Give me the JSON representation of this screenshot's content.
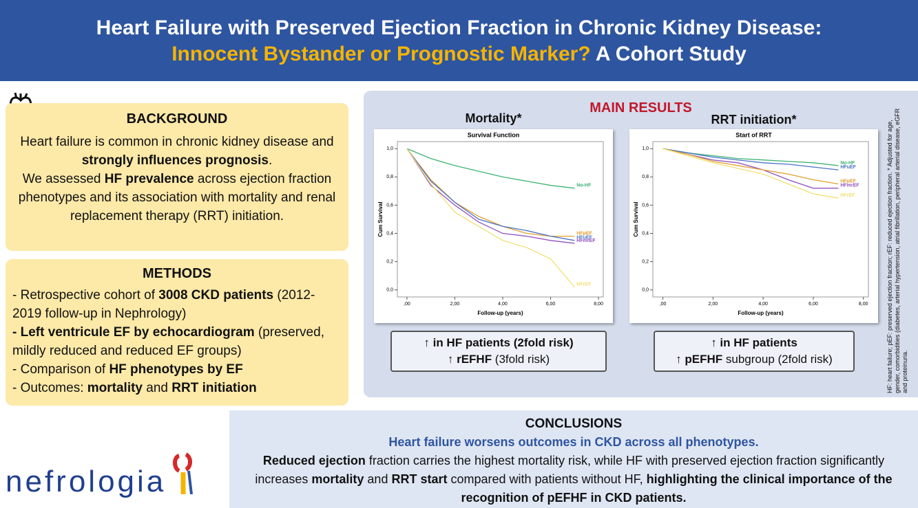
{
  "header": {
    "title_line1": "Heart Failure with Preserved Ejection Fraction in Chronic Kidney Disease:",
    "title_line2_highlight": "Innocent Bystander or Prognostic Marker?",
    "title_line2_rest": "A Cohort Study"
  },
  "background": {
    "title": "BACKGROUND",
    "text": [
      "Heart failure is common in chronic kidney disease and ",
      "strongly influences prognosis",
      ".",
      "We assessed ",
      "HF prevalence",
      " across ejection fraction phenotypes and its association with mortality and renal replacement therapy (RRT) initiation."
    ]
  },
  "methods": {
    "title": "METHODS",
    "items": [
      [
        "- Retrospective cohort of ",
        "3008 CKD patients",
        " (2012-2019 follow-up in Nephrology)"
      ],
      [
        "- Left ventricule EF by echocardiogram",
        " (preserved, mildly reduced and reduced EF groups)"
      ],
      [
        "- Comparison of ",
        "HF phenotypes by EF"
      ],
      [
        "- Outcomes: ",
        "mortality",
        " and ",
        "RRT initiation"
      ]
    ]
  },
  "results": {
    "title": "MAIN RESULTS",
    "headings": [
      "Mortality*",
      "RRT initiation*"
    ],
    "findings": [
      [
        [
          "↑ in HF patients (2fold risk)"
        ],
        [
          "↑ ",
          "rEFHF",
          " (3fold risk)"
        ]
      ],
      [
        [
          "↑ in HF patients"
        ],
        [
          "↑ ",
          "pEFHF",
          " subgroup (2fold risk)"
        ]
      ]
    ]
  },
  "footnote": "HF: heart failure; pEF: preserved ejection fraction; rEF: reduced ejection fraction. * Adjusted for age, gender, comorbidities (diabetes, arterial hypertension, atrial fibrillation, peripheral arterial disease, eGFR and proteinuria.",
  "conclusions": {
    "title": "CONCLUSIONS",
    "subtitle": "Heart failure worsens outcomes in CKD across all phenotypes.",
    "text": [
      "Reduced ejection",
      " fraction carries the highest mortality risk, while HF with preserved ejection fraction significantly increases ",
      "mortality",
      " and ",
      "RRT start",
      " compared with patients without HF, ",
      "highlighting the clinical importance of the recognition of pEFHF in CKD patients."
    ]
  },
  "logo": "nefrologia",
  "chart_data": [
    {
      "type": "line",
      "title": "Survival Function",
      "x_label": "Follow-up (years)",
      "y_label": "Cum Survival",
      "x": [
        0,
        1,
        2,
        3,
        4,
        5,
        6,
        7
      ],
      "series": [
        {
          "name": "No-HF",
          "color": "#3cb371",
          "values": [
            1.0,
            0.93,
            0.88,
            0.84,
            0.8,
            0.77,
            0.74,
            0.72
          ]
        },
        {
          "name": "HFpEF",
          "color": "#e0a030",
          "values": [
            1.0,
            0.78,
            0.62,
            0.52,
            0.45,
            0.4,
            0.38,
            0.38
          ]
        },
        {
          "name": "HFuEF",
          "color": "#4a72c8",
          "values": [
            1.0,
            0.77,
            0.62,
            0.5,
            0.45,
            0.42,
            0.38,
            0.35
          ]
        },
        {
          "name": "HFmrEF",
          "color": "#9050c0",
          "values": [
            1.0,
            0.74,
            0.6,
            0.48,
            0.4,
            0.38,
            0.35,
            0.33
          ]
        },
        {
          "name": "HFrEF",
          "color": "#f0e070",
          "values": [
            1.0,
            0.75,
            0.55,
            0.45,
            0.35,
            0.3,
            0.22,
            0.02
          ]
        }
      ],
      "xlim": [
        -0.4,
        8.2
      ],
      "ylim": [
        -0.05,
        1.05
      ],
      "xticks": [
        {
          "value": 0,
          "label": ",00"
        },
        {
          "value": 2,
          "label": "2,00"
        },
        {
          "value": 4,
          "label": "4,00"
        },
        {
          "value": 6,
          "label": "6,00"
        },
        {
          "value": 8,
          "label": "8,00"
        }
      ],
      "yticks": [
        {
          "value": 0,
          "label": "0,0"
        },
        {
          "value": 0.2,
          "label": "0,2"
        },
        {
          "value": 0.4,
          "label": "0,4"
        },
        {
          "value": 0.6,
          "label": "0,6"
        },
        {
          "value": 0.8,
          "label": "0,8"
        },
        {
          "value": 1,
          "label": "1,0"
        }
      ]
    },
    {
      "type": "line",
      "title": "Start of RRT",
      "x_label": "Follow-up (years)",
      "y_label": "Cum Survival",
      "x": [
        0,
        1,
        2,
        3,
        4,
        5,
        6,
        7
      ],
      "series": [
        {
          "name": "No-HF",
          "color": "#3cb371",
          "values": [
            1.0,
            0.97,
            0.95,
            0.93,
            0.92,
            0.91,
            0.9,
            0.88
          ]
        },
        {
          "name": "HFuEF",
          "color": "#4a72c8",
          "values": [
            1.0,
            0.97,
            0.94,
            0.92,
            0.9,
            0.89,
            0.87,
            0.85
          ]
        },
        {
          "name": "HFmrEF",
          "color": "#9050c0",
          "values": [
            1.0,
            0.96,
            0.92,
            0.9,
            0.85,
            0.78,
            0.72,
            0.72
          ]
        },
        {
          "name": "HFpEF",
          "color": "#e0a030",
          "values": [
            1.0,
            0.96,
            0.91,
            0.88,
            0.85,
            0.82,
            0.78,
            0.75
          ]
        },
        {
          "name": "HFrEF",
          "color": "#f0e070",
          "values": [
            1.0,
            0.95,
            0.9,
            0.86,
            0.82,
            0.75,
            0.68,
            0.65
          ]
        }
      ],
      "xlim": [
        -0.4,
        8.2
      ],
      "ylim": [
        -0.05,
        1.05
      ],
      "xticks": [
        {
          "value": 0,
          "label": ",00"
        },
        {
          "value": 2,
          "label": "2,00"
        },
        {
          "value": 4,
          "label": "4,00"
        },
        {
          "value": 6,
          "label": "6,00"
        },
        {
          "value": 8,
          "label": "8,00"
        }
      ],
      "yticks": [
        {
          "value": 0,
          "label": "0,0"
        },
        {
          "value": 0.2,
          "label": "0,2"
        },
        {
          "value": 0.4,
          "label": "0,4"
        },
        {
          "value": 0.6,
          "label": "0,6"
        },
        {
          "value": 0.8,
          "label": "0,8"
        },
        {
          "value": 1,
          "label": "1,0"
        }
      ]
    }
  ]
}
